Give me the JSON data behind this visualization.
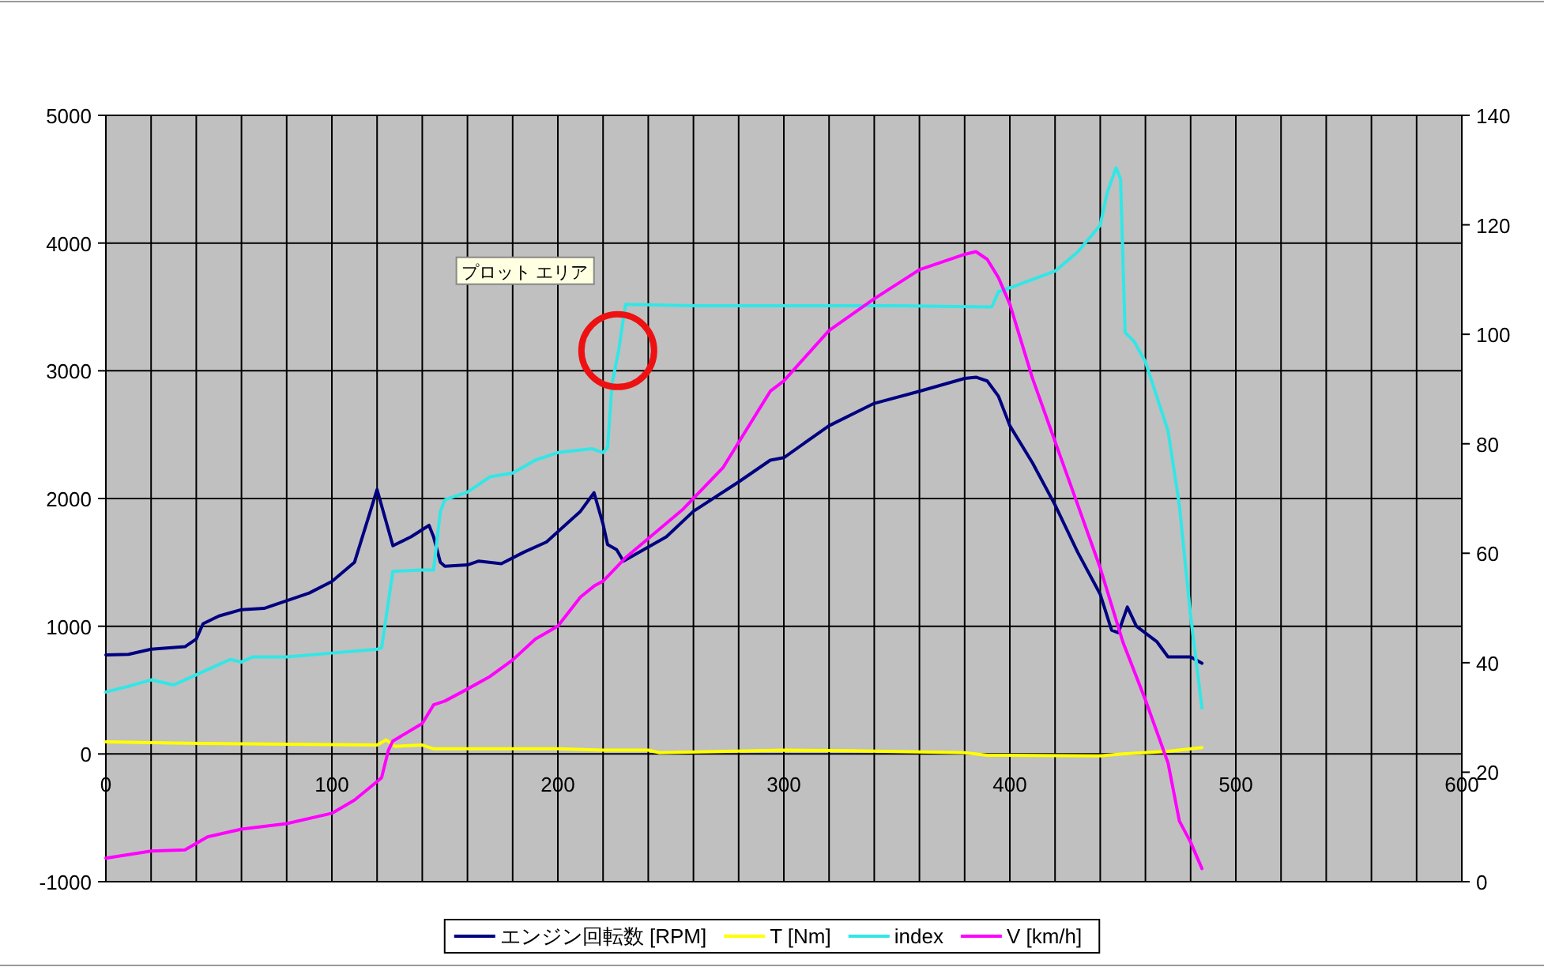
{
  "chart_data": {
    "type": "line",
    "xlim": [
      0,
      600
    ],
    "ylim": [
      -1000,
      5000
    ],
    "y2lim": [
      0,
      140
    ],
    "xticks": [
      0,
      {
        "value": 20,
        "label": null
      },
      {
        "value": 40,
        "label": null
      },
      {
        "value": 60,
        "label": null
      },
      {
        "value": 80,
        "label": null
      },
      100,
      {
        "value": 120,
        "label": null
      },
      {
        "value": 140,
        "label": null
      },
      {
        "value": 160,
        "label": null
      },
      {
        "value": 180,
        "label": null
      },
      200,
      {
        "value": 220,
        "label": null
      },
      {
        "value": 240,
        "label": null
      },
      {
        "value": 260,
        "label": null
      },
      {
        "value": 280,
        "label": null
      },
      300,
      {
        "value": 320,
        "label": null
      },
      {
        "value": 340,
        "label": null
      },
      {
        "value": 360,
        "label": null
      },
      {
        "value": 380,
        "label": null
      },
      400,
      {
        "value": 420,
        "label": null
      },
      {
        "value": 440,
        "label": null
      },
      {
        "value": 460,
        "label": null
      },
      {
        "value": 480,
        "label": null
      },
      500,
      {
        "value": 520,
        "label": null
      },
      {
        "value": 540,
        "label": null
      },
      {
        "value": 560,
        "label": null
      },
      {
        "value": 580,
        "label": null
      },
      600
    ],
    "yticks": [
      -1000,
      0,
      1000,
      2000,
      3000,
      4000,
      5000
    ],
    "y2ticks": [
      0,
      20,
      40,
      60,
      80,
      100,
      120,
      140
    ],
    "grid": true,
    "legend": "bottom",
    "annotations": [
      "プロット エリア"
    ],
    "series": [
      {
        "name": "エンジン回転数 [RPM]",
        "color": "#000080",
        "x": [
          0,
          10,
          20,
          35,
          40,
          43,
          50,
          60,
          70,
          80,
          90,
          100,
          110,
          120,
          127,
          135,
          143,
          145,
          148,
          150,
          160,
          165,
          175,
          185,
          195,
          200,
          210,
          216,
          220,
          222,
          226,
          229,
          248,
          260,
          280,
          294,
          300,
          320,
          340,
          360,
          380,
          385,
          390,
          395,
          400,
          410,
          420,
          430,
          440,
          445,
          448,
          452,
          456,
          465,
          470,
          480,
          485
        ],
        "values": [
          775,
          780,
          820,
          840,
          900,
          1020,
          1080,
          1130,
          1140,
          1200,
          1260,
          1350,
          1500,
          2070,
          1630,
          1700,
          1790,
          1700,
          1500,
          1470,
          1480,
          1510,
          1490,
          1580,
          1660,
          1740,
          1900,
          2045,
          1800,
          1640,
          1600,
          1510,
          1700,
          1900,
          2130,
          2300,
          2320,
          2570,
          2745,
          2840,
          2940,
          2950,
          2920,
          2800,
          2570,
          2280,
          1950,
          1580,
          1250,
          970,
          950,
          1150,
          1000,
          880,
          760,
          760,
          710
        ]
      },
      {
        "name": "T [Nm]",
        "color": "#ffff00",
        "x": [
          0,
          30,
          120,
          124,
          128,
          140,
          145,
          200,
          220,
          240,
          245,
          300,
          330,
          380,
          390,
          440,
          450,
          470,
          485
        ],
        "values": [
          95,
          85,
          70,
          110,
          60,
          70,
          40,
          40,
          30,
          30,
          10,
          30,
          25,
          10,
          -10,
          -15,
          0,
          20,
          50
        ]
      },
      {
        "name": "index",
        "color": "#33e6e6",
        "x": [
          0,
          10,
          20,
          30,
          40,
          50,
          55,
          60,
          65,
          80,
          100,
          120,
          122,
          127,
          140,
          145,
          148,
          150,
          160,
          170,
          180,
          190,
          200,
          215,
          220,
          222,
          224,
          227,
          229,
          230,
          260,
          300,
          350,
          390,
          392,
          395,
          400,
          420,
          430,
          440,
          443,
          447,
          449,
          451,
          455,
          460,
          470,
          475,
          480,
          485
        ],
        "values": [
          485,
          530,
          580,
          540,
          620,
          700,
          740,
          720,
          760,
          760,
          790,
          820,
          830,
          1430,
          1440,
          1440,
          1900,
          1990,
          2050,
          2170,
          2200,
          2300,
          2360,
          2390,
          2360,
          2400,
          2900,
          3170,
          3410,
          3520,
          3510,
          3510,
          3510,
          3500,
          3500,
          3620,
          3650,
          3780,
          3930,
          4140,
          4390,
          4590,
          4500,
          3300,
          3230,
          3070,
          2530,
          1950,
          1080,
          360
        ]
      },
      {
        "name": "V [km/h]",
        "color": "#ff00ff",
        "axis": "y2",
        "x": [
          0,
          20,
          35,
          45,
          60,
          80,
          100,
          110,
          120,
          122,
          125,
          127,
          140,
          145,
          150,
          160,
          170,
          180,
          190,
          200,
          210,
          216,
          220,
          230,
          255,
          273,
          294,
          300,
          320,
          340,
          360,
          380,
          385,
          390,
          395,
          400,
          410,
          420,
          430,
          440,
          450,
          460,
          470,
          475,
          480,
          485
        ],
        "values": [
          4.3,
          5.6,
          5.8,
          8.2,
          9.6,
          10.6,
          12.5,
          14.9,
          18.3,
          19,
          24,
          25.7,
          28.9,
          32.3,
          33,
          35.2,
          37.5,
          40.5,
          44.3,
          46.7,
          52,
          54,
          54.9,
          59.2,
          67.9,
          75.6,
          89.6,
          91.5,
          100.7,
          106.5,
          111.8,
          114.6,
          115.1,
          113.7,
          110.3,
          105.5,
          92,
          80.4,
          68.9,
          57.3,
          43.8,
          33.2,
          21.7,
          11.1,
          7.2,
          2.4
        ]
      }
    ]
  }
}
